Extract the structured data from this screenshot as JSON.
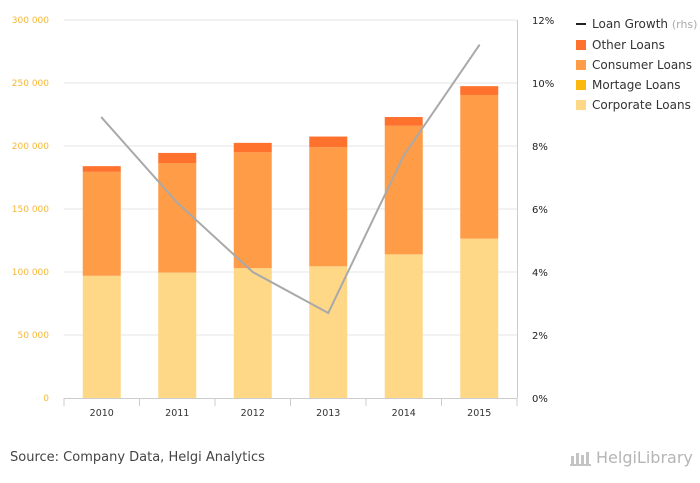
{
  "chart_data": {
    "type": "bar",
    "stacked": true,
    "categories": [
      "2010",
      "2011",
      "2012",
      "2013",
      "2014",
      "2015"
    ],
    "series": [
      {
        "name": "Corporate Loans",
        "color": "#fed887",
        "values": [
          97000,
          99500,
          103000,
          104500,
          114000,
          126500
        ]
      },
      {
        "name": "Mortage Loans",
        "color": "#fbb80e",
        "values": [
          0,
          0,
          0,
          0,
          0,
          0
        ]
      },
      {
        "name": "Consumer Loans",
        "color": "#fe9c47",
        "values": [
          82500,
          87000,
          92000,
          94500,
          102000,
          114000
        ]
      },
      {
        "name": "Other Loans",
        "color": "#fe722e",
        "values": [
          4500,
          8000,
          7500,
          8500,
          7000,
          7000
        ]
      }
    ],
    "line_series": {
      "name": "Loan Growth",
      "suffix": "(rhs)",
      "color": "#a9a9a9",
      "axis": "right",
      "values": [
        8.9,
        6.2,
        4.0,
        2.7,
        7.7,
        11.2
      ]
    },
    "ylim_left": [
      0,
      300000
    ],
    "left_ticks": [
      "0",
      "50 000",
      "100 000",
      "150 000",
      "200 000",
      "250 000",
      "300 000"
    ],
    "ylim_right": [
      0,
      12
    ],
    "right_ticks": [
      "0%",
      "2%",
      "4%",
      "6%",
      "8%",
      "10%",
      "12%"
    ],
    "legend_position": "top-right",
    "grid": true
  },
  "source_text": "Source: Company Data, Helgi Analytics",
  "brand": "HelgiLibrary"
}
